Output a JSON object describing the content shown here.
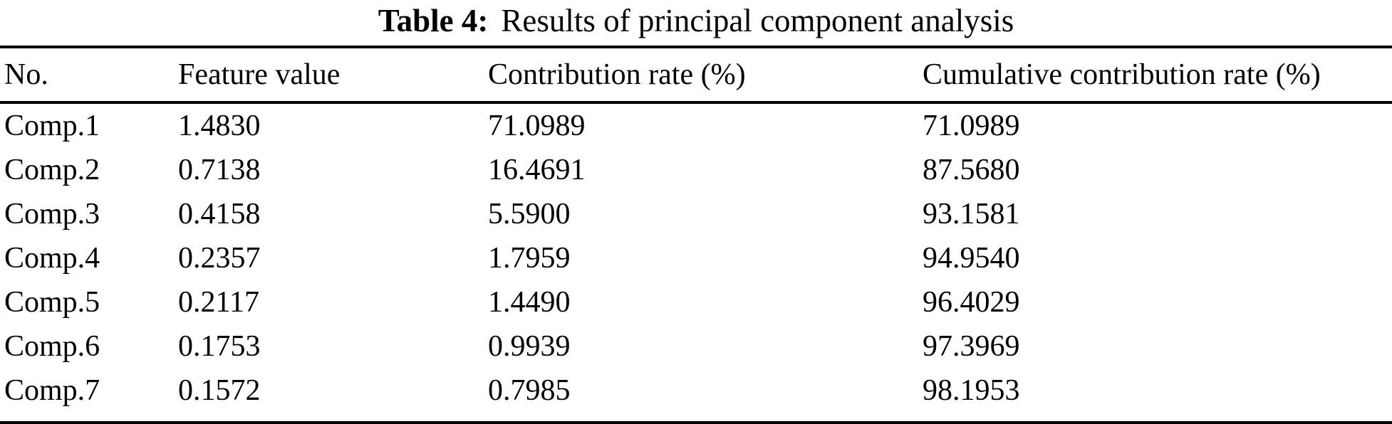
{
  "caption": {
    "label": "Table 4:",
    "text": "Results of principal component analysis"
  },
  "table": {
    "columns": {
      "no": "No.",
      "feature_value": "Feature value",
      "contribution_rate": "Contribution rate (%)",
      "cumulative_rate": "Cumulative contribution rate (%)"
    },
    "rows": [
      {
        "no": "Comp.1",
        "feature_value": "1.4830",
        "contribution_rate": "71.0989",
        "cumulative_rate": "71.0989"
      },
      {
        "no": "Comp.2",
        "feature_value": "0.7138",
        "contribution_rate": "16.4691",
        "cumulative_rate": "87.5680"
      },
      {
        "no": "Comp.3",
        "feature_value": "0.4158",
        "contribution_rate": "5.5900",
        "cumulative_rate": "93.1581"
      },
      {
        "no": "Comp.4",
        "feature_value": "0.2357",
        "contribution_rate": "1.7959",
        "cumulative_rate": "94.9540"
      },
      {
        "no": "Comp.5",
        "feature_value": "0.2117",
        "contribution_rate": "1.4490",
        "cumulative_rate": "96.4029"
      },
      {
        "no": "Comp.6",
        "feature_value": "0.1753",
        "contribution_rate": "0.9939",
        "cumulative_rate": "97.3969"
      },
      {
        "no": "Comp.7",
        "feature_value": "0.1572",
        "contribution_rate": "0.7985",
        "cumulative_rate": "98.1953"
      }
    ]
  },
  "chart_data": {
    "type": "table",
    "title": "Table 4: Results of principal component analysis",
    "columns": [
      "No.",
      "Feature value",
      "Contribution rate (%)",
      "Cumulative contribution rate (%)"
    ],
    "rows": [
      [
        "Comp.1",
        1.483,
        71.0989,
        71.0989
      ],
      [
        "Comp.2",
        0.7138,
        16.4691,
        87.568
      ],
      [
        "Comp.3",
        0.4158,
        5.59,
        93.1581
      ],
      [
        "Comp.4",
        0.2357,
        1.7959,
        94.954
      ],
      [
        "Comp.5",
        0.2117,
        1.449,
        96.4029
      ],
      [
        "Comp.6",
        0.1753,
        0.9939,
        97.3969
      ],
      [
        "Comp.7",
        0.1572,
        0.7985,
        98.1953
      ]
    ]
  }
}
